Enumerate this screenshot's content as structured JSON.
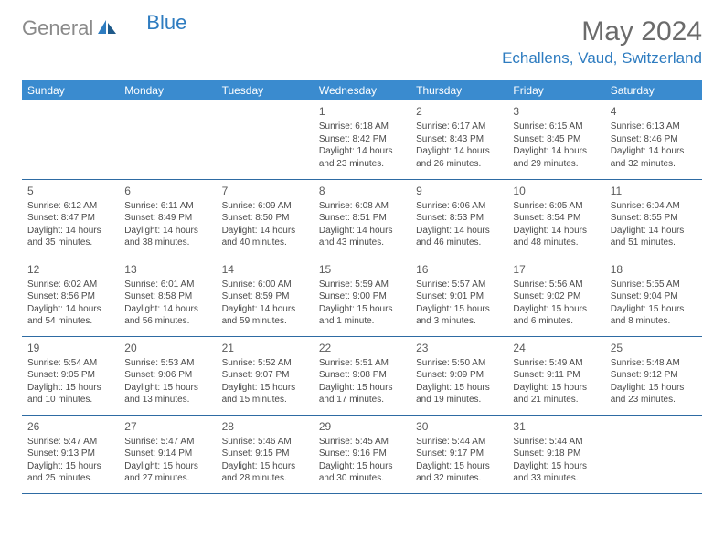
{
  "logo": {
    "general": "General",
    "blue": "Blue"
  },
  "header": {
    "monthTitle": "May 2024",
    "location": "Echallens, Vaud, Switzerland"
  },
  "colors": {
    "headerBg": "#3a8bcf",
    "logoBlue": "#2e7cc0",
    "logoGray": "#8a8a8a",
    "border": "#2e6ba3"
  },
  "dayNames": [
    "Sunday",
    "Monday",
    "Tuesday",
    "Wednesday",
    "Thursday",
    "Friday",
    "Saturday"
  ],
  "weeks": [
    [
      null,
      null,
      null,
      {
        "d": "1",
        "sr": "Sunrise: 6:18 AM",
        "ss": "Sunset: 8:42 PM",
        "dl1": "Daylight: 14 hours",
        "dl2": "and 23 minutes."
      },
      {
        "d": "2",
        "sr": "Sunrise: 6:17 AM",
        "ss": "Sunset: 8:43 PM",
        "dl1": "Daylight: 14 hours",
        "dl2": "and 26 minutes."
      },
      {
        "d": "3",
        "sr": "Sunrise: 6:15 AM",
        "ss": "Sunset: 8:45 PM",
        "dl1": "Daylight: 14 hours",
        "dl2": "and 29 minutes."
      },
      {
        "d": "4",
        "sr": "Sunrise: 6:13 AM",
        "ss": "Sunset: 8:46 PM",
        "dl1": "Daylight: 14 hours",
        "dl2": "and 32 minutes."
      }
    ],
    [
      {
        "d": "5",
        "sr": "Sunrise: 6:12 AM",
        "ss": "Sunset: 8:47 PM",
        "dl1": "Daylight: 14 hours",
        "dl2": "and 35 minutes."
      },
      {
        "d": "6",
        "sr": "Sunrise: 6:11 AM",
        "ss": "Sunset: 8:49 PM",
        "dl1": "Daylight: 14 hours",
        "dl2": "and 38 minutes."
      },
      {
        "d": "7",
        "sr": "Sunrise: 6:09 AM",
        "ss": "Sunset: 8:50 PM",
        "dl1": "Daylight: 14 hours",
        "dl2": "and 40 minutes."
      },
      {
        "d": "8",
        "sr": "Sunrise: 6:08 AM",
        "ss": "Sunset: 8:51 PM",
        "dl1": "Daylight: 14 hours",
        "dl2": "and 43 minutes."
      },
      {
        "d": "9",
        "sr": "Sunrise: 6:06 AM",
        "ss": "Sunset: 8:53 PM",
        "dl1": "Daylight: 14 hours",
        "dl2": "and 46 minutes."
      },
      {
        "d": "10",
        "sr": "Sunrise: 6:05 AM",
        "ss": "Sunset: 8:54 PM",
        "dl1": "Daylight: 14 hours",
        "dl2": "and 48 minutes."
      },
      {
        "d": "11",
        "sr": "Sunrise: 6:04 AM",
        "ss": "Sunset: 8:55 PM",
        "dl1": "Daylight: 14 hours",
        "dl2": "and 51 minutes."
      }
    ],
    [
      {
        "d": "12",
        "sr": "Sunrise: 6:02 AM",
        "ss": "Sunset: 8:56 PM",
        "dl1": "Daylight: 14 hours",
        "dl2": "and 54 minutes."
      },
      {
        "d": "13",
        "sr": "Sunrise: 6:01 AM",
        "ss": "Sunset: 8:58 PM",
        "dl1": "Daylight: 14 hours",
        "dl2": "and 56 minutes."
      },
      {
        "d": "14",
        "sr": "Sunrise: 6:00 AM",
        "ss": "Sunset: 8:59 PM",
        "dl1": "Daylight: 14 hours",
        "dl2": "and 59 minutes."
      },
      {
        "d": "15",
        "sr": "Sunrise: 5:59 AM",
        "ss": "Sunset: 9:00 PM",
        "dl1": "Daylight: 15 hours",
        "dl2": "and 1 minute."
      },
      {
        "d": "16",
        "sr": "Sunrise: 5:57 AM",
        "ss": "Sunset: 9:01 PM",
        "dl1": "Daylight: 15 hours",
        "dl2": "and 3 minutes."
      },
      {
        "d": "17",
        "sr": "Sunrise: 5:56 AM",
        "ss": "Sunset: 9:02 PM",
        "dl1": "Daylight: 15 hours",
        "dl2": "and 6 minutes."
      },
      {
        "d": "18",
        "sr": "Sunrise: 5:55 AM",
        "ss": "Sunset: 9:04 PM",
        "dl1": "Daylight: 15 hours",
        "dl2": "and 8 minutes."
      }
    ],
    [
      {
        "d": "19",
        "sr": "Sunrise: 5:54 AM",
        "ss": "Sunset: 9:05 PM",
        "dl1": "Daylight: 15 hours",
        "dl2": "and 10 minutes."
      },
      {
        "d": "20",
        "sr": "Sunrise: 5:53 AM",
        "ss": "Sunset: 9:06 PM",
        "dl1": "Daylight: 15 hours",
        "dl2": "and 13 minutes."
      },
      {
        "d": "21",
        "sr": "Sunrise: 5:52 AM",
        "ss": "Sunset: 9:07 PM",
        "dl1": "Daylight: 15 hours",
        "dl2": "and 15 minutes."
      },
      {
        "d": "22",
        "sr": "Sunrise: 5:51 AM",
        "ss": "Sunset: 9:08 PM",
        "dl1": "Daylight: 15 hours",
        "dl2": "and 17 minutes."
      },
      {
        "d": "23",
        "sr": "Sunrise: 5:50 AM",
        "ss": "Sunset: 9:09 PM",
        "dl1": "Daylight: 15 hours",
        "dl2": "and 19 minutes."
      },
      {
        "d": "24",
        "sr": "Sunrise: 5:49 AM",
        "ss": "Sunset: 9:11 PM",
        "dl1": "Daylight: 15 hours",
        "dl2": "and 21 minutes."
      },
      {
        "d": "25",
        "sr": "Sunrise: 5:48 AM",
        "ss": "Sunset: 9:12 PM",
        "dl1": "Daylight: 15 hours",
        "dl2": "and 23 minutes."
      }
    ],
    [
      {
        "d": "26",
        "sr": "Sunrise: 5:47 AM",
        "ss": "Sunset: 9:13 PM",
        "dl1": "Daylight: 15 hours",
        "dl2": "and 25 minutes."
      },
      {
        "d": "27",
        "sr": "Sunrise: 5:47 AM",
        "ss": "Sunset: 9:14 PM",
        "dl1": "Daylight: 15 hours",
        "dl2": "and 27 minutes."
      },
      {
        "d": "28",
        "sr": "Sunrise: 5:46 AM",
        "ss": "Sunset: 9:15 PM",
        "dl1": "Daylight: 15 hours",
        "dl2": "and 28 minutes."
      },
      {
        "d": "29",
        "sr": "Sunrise: 5:45 AM",
        "ss": "Sunset: 9:16 PM",
        "dl1": "Daylight: 15 hours",
        "dl2": "and 30 minutes."
      },
      {
        "d": "30",
        "sr": "Sunrise: 5:44 AM",
        "ss": "Sunset: 9:17 PM",
        "dl1": "Daylight: 15 hours",
        "dl2": "and 32 minutes."
      },
      {
        "d": "31",
        "sr": "Sunrise: 5:44 AM",
        "ss": "Sunset: 9:18 PM",
        "dl1": "Daylight: 15 hours",
        "dl2": "and 33 minutes."
      },
      null
    ]
  ]
}
